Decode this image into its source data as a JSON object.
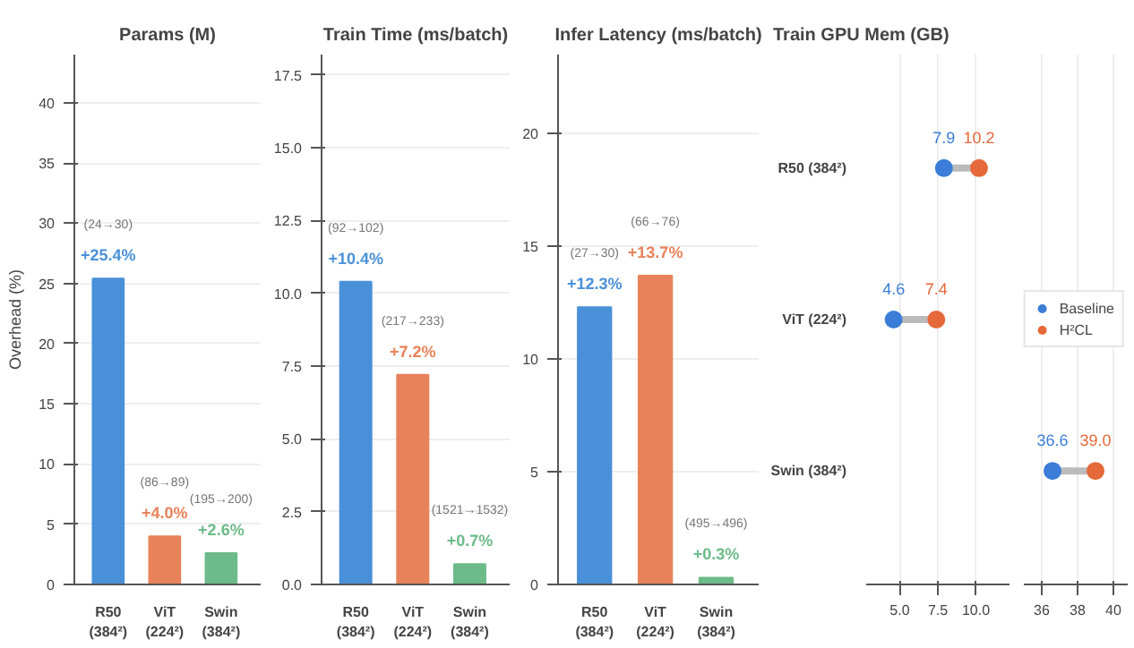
{
  "chart_data": [
    {
      "type": "bar",
      "title": "Params (M)",
      "ylabel": "Overhead (%)",
      "categories": [
        "R50\n(384²)",
        "ViT\n(224²)",
        "Swin\n(384²)"
      ],
      "values": [
        25.4,
        4.0,
        2.6
      ],
      "colors": [
        "#4a90d9",
        "#e8825a",
        "#6dbb8a"
      ],
      "value_labels": [
        "+25.4%",
        "+4.0%",
        "+2.6%"
      ],
      "annotations": [
        "(24→30)",
        "(86→89)",
        "(195→200)"
      ],
      "ylim": [
        0,
        44
      ],
      "yticks": [
        0,
        5,
        10,
        15,
        20,
        25,
        30,
        35,
        40
      ],
      "grid": "y"
    },
    {
      "type": "bar",
      "title": "Train Time (ms/batch)",
      "categories": [
        "R50\n(384²)",
        "ViT\n(224²)",
        "Swin\n(384²)"
      ],
      "values": [
        10.4,
        7.2,
        0.7
      ],
      "colors": [
        "#4a90d9",
        "#e8825a",
        "#6dbb8a"
      ],
      "value_labels": [
        "+10.4%",
        "+7.2%",
        "+0.7%"
      ],
      "annotations": [
        "(92→102)",
        "(217→233)",
        "(1521→1532)"
      ],
      "ylim": [
        0,
        18.2
      ],
      "yticks": [
        {
          "value": 0,
          "label": "0.0"
        },
        {
          "value": 2.5,
          "label": "2.5"
        },
        {
          "value": 5,
          "label": "5.0"
        },
        {
          "value": 7.5,
          "label": "7.5"
        },
        {
          "value": 10,
          "label": "10.0"
        },
        {
          "value": 12.5,
          "label": "12.5"
        },
        {
          "value": 15,
          "label": "15.0"
        },
        {
          "value": 17.5,
          "label": "17.5"
        }
      ],
      "grid": "y"
    },
    {
      "type": "bar",
      "title": "Infer Latency (ms/batch)",
      "categories": [
        "R50\n(384²)",
        "ViT\n(224²)",
        "Swin\n(384²)"
      ],
      "values": [
        12.3,
        13.7,
        0.3
      ],
      "colors": [
        "#4a90d9",
        "#e8825a",
        "#6dbb8a"
      ],
      "value_labels": [
        "+12.3%",
        "+13.7%",
        "+0.3%"
      ],
      "annotations": [
        "(27→30)",
        "(66→76)",
        "(495→496)"
      ],
      "ylim": [
        0,
        23.5
      ],
      "yticks": [
        0,
        5,
        10,
        15,
        20
      ],
      "grid": "y"
    },
    {
      "type": "scatter",
      "orientation": "horizontal",
      "title": "Train GPU Mem (GB)",
      "categories": [
        "R50 (384²)",
        "ViT (224²)",
        "Swin (384²)"
      ],
      "series": [
        {
          "name": "Baseline",
          "color": "#3b7dd8",
          "values": [
            7.9,
            4.6,
            null
          ],
          "value_labels": [
            "7.9",
            "4.6",
            null
          ]
        },
        {
          "name": "H²CL",
          "color": "#e5693a",
          "values": [
            10.2,
            7.4,
            null
          ],
          "value_labels": [
            "10.2",
            "7.4",
            null
          ]
        }
      ],
      "xlim": [
        2.8,
        12.2
      ],
      "xticks": [
        {
          "value": 5,
          "label": "5.0"
        },
        {
          "value": 7.5,
          "label": "7.5"
        },
        {
          "value": 10,
          "label": "10.0"
        }
      ],
      "marker": "circle",
      "grid": "x",
      "legend": "right"
    },
    {
      "type": "scatter",
      "orientation": "horizontal",
      "categories": [
        "R50 (384²)",
        "ViT (224²)",
        "Swin (384²)"
      ],
      "series": [
        {
          "name": "Baseline",
          "color": "#3b7dd8",
          "values": [
            null,
            null,
            36.6
          ],
          "value_labels": [
            null,
            null,
            "36.6"
          ]
        },
        {
          "name": "H²CL",
          "color": "#e5693a",
          "values": [
            null,
            null,
            39.0
          ],
          "value_labels": [
            null,
            null,
            "39.0"
          ]
        }
      ],
      "xlim": [
        35,
        40.8
      ],
      "xticks": [
        36,
        38,
        40
      ],
      "marker": "circle",
      "grid": "x",
      "tick_labels": "x"
    }
  ]
}
